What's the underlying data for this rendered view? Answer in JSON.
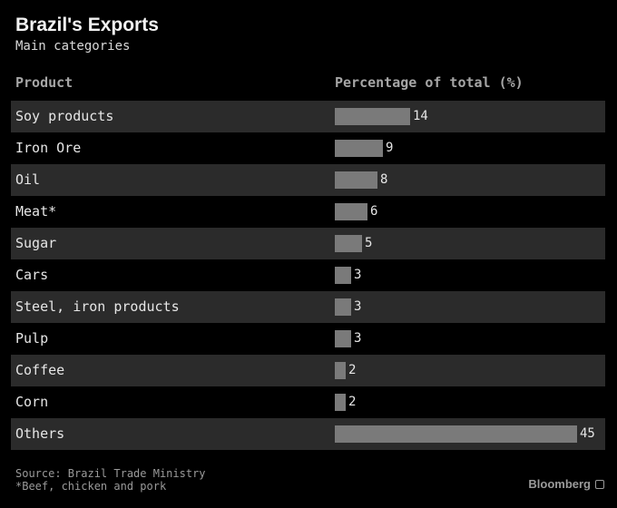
{
  "chart_data": {
    "type": "bar",
    "title": "Brazil's Exports",
    "subtitle": "Main categories",
    "column_headers": [
      "Product",
      "Percentage of total (%)"
    ],
    "categories": [
      "Soy products",
      "Iron Ore",
      "Oil",
      "Meat*",
      "Sugar",
      "Cars",
      "Steel, iron products",
      "Pulp",
      "Coffee",
      "Corn",
      "Others"
    ],
    "values": [
      14,
      9,
      8,
      6,
      5,
      3,
      3,
      3,
      2,
      2,
      45
    ],
    "xlim": [
      0,
      45
    ],
    "unit": "%"
  },
  "footer": {
    "source": "Source: Brazil Trade Ministry",
    "note": "*Beef, chicken and pork"
  },
  "brand": "Bloomberg",
  "colors": {
    "background": "#000000",
    "row_shade": "#2b2b2b",
    "bar": "#7a7a7a"
  }
}
